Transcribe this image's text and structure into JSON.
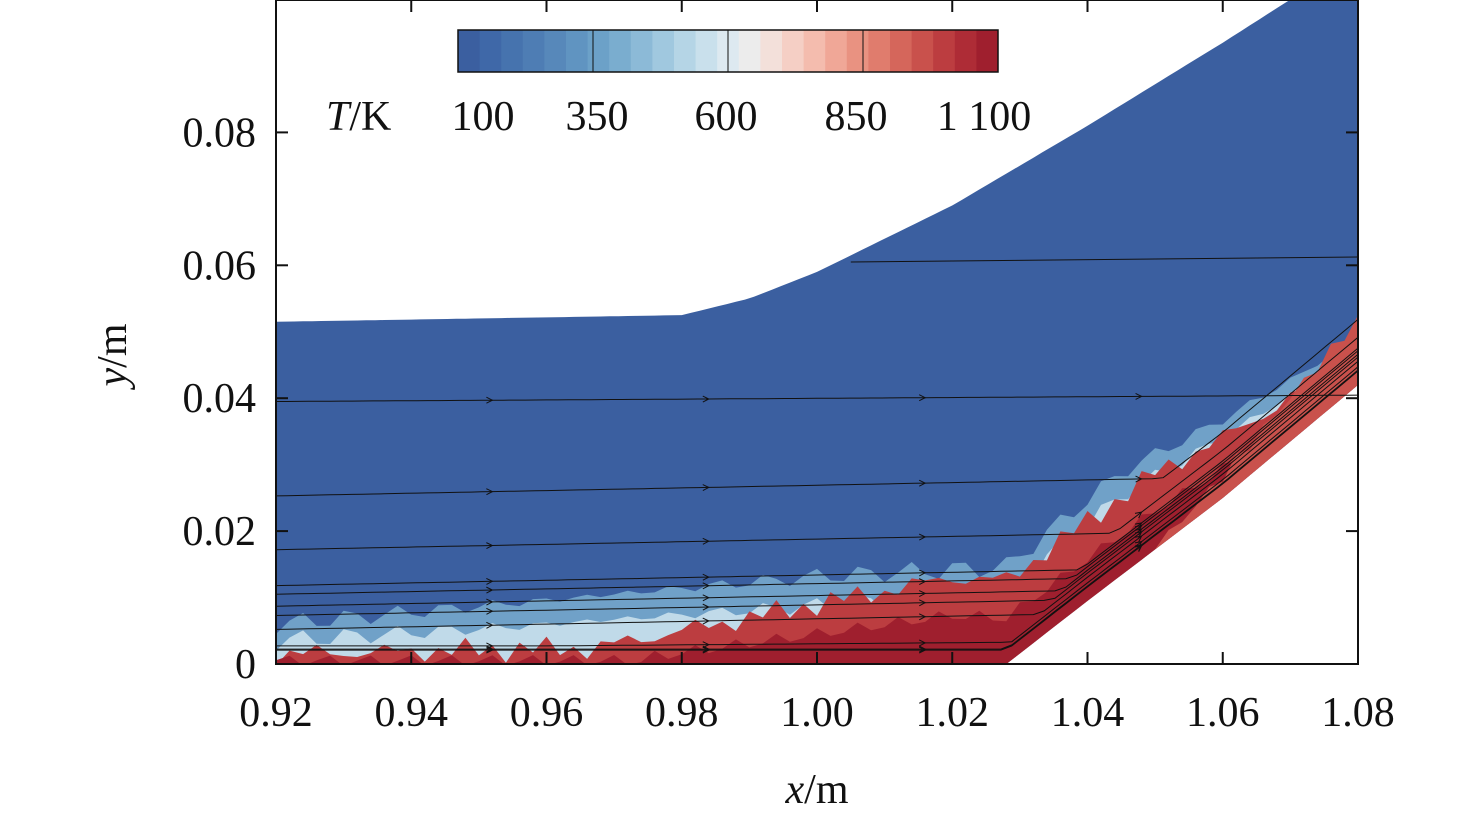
{
  "chart_data": {
    "type": "heatmap",
    "description_quantity": "T/K",
    "x_axis": {
      "label_var": "x",
      "label_unit": "/m",
      "range": [
        0.92,
        1.08
      ],
      "ticks": [
        0.92,
        0.94,
        0.96,
        0.98,
        1.0,
        1.02,
        1.04,
        1.06,
        1.08
      ],
      "tick_labels": [
        "0.92",
        "0.94",
        "0.96",
        "0.98",
        "1.00",
        "1.02",
        "1.04",
        "1.06",
        "1.08"
      ]
    },
    "y_axis": {
      "label_var": "y",
      "label_unit": "/m",
      "range": [
        0,
        0.1
      ],
      "ticks": [
        0,
        0.02,
        0.04,
        0.06,
        0.08
      ],
      "tick_labels": [
        "0",
        "0.02",
        "0.04",
        "0.06",
        "0.08"
      ]
    },
    "colorbar": {
      "label_var": "T",
      "label_unit": "/K",
      "range": [
        100,
        1100
      ],
      "ticks": [
        100,
        350,
        600,
        850,
        1100
      ],
      "tick_labels": [
        "100",
        "350",
        "600",
        "850",
        "1 100"
      ],
      "levels": 25,
      "colors": [
        "#3b5fa0",
        "#3f68a8",
        "#4673ae",
        "#4e7db4",
        "#5788ba",
        "#6094c1",
        "#6ca1c8",
        "#7aadcf",
        "#8cbad7",
        "#a0c8df",
        "#b5d5e6",
        "#c9e0ec",
        "#dde9f0",
        "#ececec",
        "#f3e0da",
        "#f5cfc5",
        "#f4bcae",
        "#f0a797",
        "#e99281",
        "#e07c6d",
        "#d5665b",
        "#c9514c",
        "#bc3d40",
        "#ae2c36",
        "#9f1f2e"
      ]
    },
    "upper_wall_profile": [
      [
        0.92,
        0.0515
      ],
      [
        0.95,
        0.052
      ],
      [
        0.98,
        0.0525
      ],
      [
        0.99,
        0.055
      ],
      [
        1.0,
        0.059
      ],
      [
        1.02,
        0.069
      ],
      [
        1.04,
        0.081
      ],
      [
        1.06,
        0.0935
      ],
      [
        1.07,
        0.1
      ]
    ],
    "lower_wall_profile": [
      [
        0.92,
        0.0
      ],
      [
        1.02,
        0.0
      ],
      [
        1.028,
        0.0
      ],
      [
        1.04,
        0.0095
      ],
      [
        1.06,
        0.025
      ],
      [
        1.08,
        0.042
      ]
    ],
    "streamline_start_y": [
      0.0395,
      0.0253,
      0.0172,
      0.0118,
      0.0105,
      0.0087,
      0.0073,
      0.0052,
      0.0024,
      0.0008,
      0.0003
    ]
  }
}
